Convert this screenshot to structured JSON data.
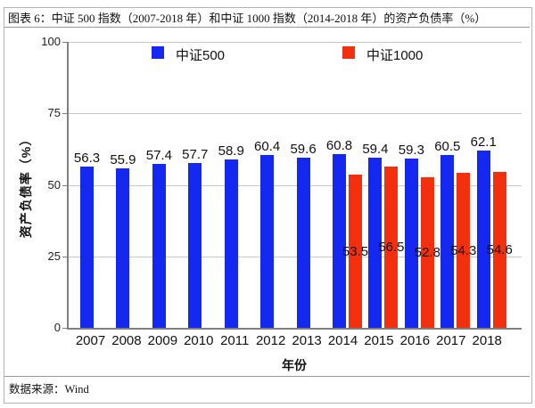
{
  "header": {
    "title": "图表 6：中证 500 指数（2007-2018 年）和中证 1000 指数（2014-2018 年）的资产负债率（%）"
  },
  "footer": {
    "source": "数据来源：Wind"
  },
  "chart_data": {
    "type": "bar",
    "categories": [
      "2007",
      "2008",
      "2009",
      "2010",
      "2011",
      "2012",
      "2013",
      "2014",
      "2015",
      "2016",
      "2017",
      "2018"
    ],
    "series": [
      {
        "name": "中证500",
        "color": "#1428f0",
        "values": [
          56.3,
          55.9,
          57.4,
          57.7,
          58.9,
          60.4,
          59.6,
          60.8,
          59.4,
          59.3,
          60.5,
          62.1
        ]
      },
      {
        "name": "中证1000",
        "color": "#f3300d",
        "values": [
          null,
          null,
          null,
          null,
          null,
          null,
          null,
          53.5,
          56.5,
          52.8,
          54.3,
          54.6
        ]
      }
    ],
    "xlabel": "年份",
    "ylabel": "资产负债率（%）",
    "ylim": [
      0,
      100
    ],
    "yticks": [
      0,
      25,
      50,
      75,
      100
    ],
    "grid": true,
    "legend_position": "top-inside"
  }
}
